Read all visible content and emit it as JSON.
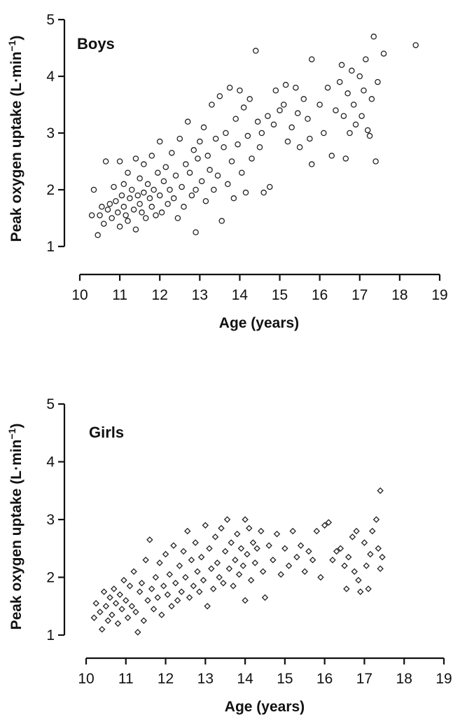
{
  "chart_data": [
    {
      "type": "scatter",
      "panel_label": "Boys",
      "xlabel": "Age (years)",
      "ylabel": "Peak oxygen uptake (L·min",
      "ylabel_sup": "−1",
      "ylabel_close": ")",
      "xlim": [
        10,
        19
      ],
      "ylim": [
        1,
        5
      ],
      "xticks": [
        10,
        11,
        12,
        13,
        14,
        15,
        16,
        17,
        18,
        19
      ],
      "yticks": [
        1,
        2,
        3,
        4,
        5
      ],
      "grid": false,
      "legend": "none",
      "marker": "circle",
      "points": [
        [
          10.3,
          1.55
        ],
        [
          10.35,
          2.0
        ],
        [
          10.45,
          1.2
        ],
        [
          10.5,
          1.55
        ],
        [
          10.55,
          1.7
        ],
        [
          10.6,
          1.4
        ],
        [
          10.65,
          2.5
        ],
        [
          10.7,
          1.65
        ],
        [
          10.75,
          1.75
        ],
        [
          10.8,
          1.5
        ],
        [
          10.85,
          2.05
        ],
        [
          10.9,
          1.8
        ],
        [
          10.95,
          1.6
        ],
        [
          11.0,
          2.5
        ],
        [
          11.0,
          1.35
        ],
        [
          11.05,
          1.9
        ],
        [
          11.1,
          2.1
        ],
        [
          11.1,
          1.7
        ],
        [
          11.15,
          1.55
        ],
        [
          11.2,
          2.3
        ],
        [
          11.2,
          1.45
        ],
        [
          11.25,
          1.85
        ],
        [
          11.3,
          2.0
        ],
        [
          11.35,
          1.65
        ],
        [
          11.4,
          2.55
        ],
        [
          11.4,
          1.3
        ],
        [
          11.45,
          1.9
        ],
        [
          11.5,
          2.2
        ],
        [
          11.5,
          1.75
        ],
        [
          11.55,
          1.6
        ],
        [
          11.6,
          2.45
        ],
        [
          11.6,
          1.95
        ],
        [
          11.65,
          1.5
        ],
        [
          11.7,
          2.1
        ],
        [
          11.75,
          1.85
        ],
        [
          11.8,
          2.6
        ],
        [
          11.8,
          1.7
        ],
        [
          11.85,
          2.0
        ],
        [
          11.9,
          1.55
        ],
        [
          11.95,
          2.3
        ],
        [
          12.0,
          2.85
        ],
        [
          12.0,
          1.9
        ],
        [
          12.05,
          1.6
        ],
        [
          12.1,
          2.15
        ],
        [
          12.15,
          2.4
        ],
        [
          12.2,
          1.75
        ],
        [
          12.25,
          2.0
        ],
        [
          12.3,
          2.65
        ],
        [
          12.35,
          1.85
        ],
        [
          12.4,
          2.25
        ],
        [
          12.45,
          1.5
        ],
        [
          12.5,
          2.9
        ],
        [
          12.55,
          2.05
        ],
        [
          12.6,
          1.7
        ],
        [
          12.65,
          2.45
        ],
        [
          12.7,
          3.2
        ],
        [
          12.75,
          2.3
        ],
        [
          12.8,
          1.9
        ],
        [
          12.85,
          2.7
        ],
        [
          12.9,
          2.0
        ],
        [
          12.9,
          1.25
        ],
        [
          12.95,
          2.55
        ],
        [
          13.0,
          2.85
        ],
        [
          13.05,
          2.15
        ],
        [
          13.1,
          3.1
        ],
        [
          13.15,
          1.8
        ],
        [
          13.2,
          2.6
        ],
        [
          13.25,
          2.35
        ],
        [
          13.3,
          3.5
        ],
        [
          13.35,
          2.0
        ],
        [
          13.4,
          2.9
        ],
        [
          13.45,
          2.25
        ],
        [
          13.5,
          3.65
        ],
        [
          13.55,
          1.45
        ],
        [
          13.6,
          2.75
        ],
        [
          13.65,
          3.0
        ],
        [
          13.7,
          2.1
        ],
        [
          13.75,
          3.8
        ],
        [
          13.8,
          2.5
        ],
        [
          13.85,
          1.85
        ],
        [
          13.9,
          3.25
        ],
        [
          13.95,
          2.8
        ],
        [
          14.0,
          3.75
        ],
        [
          14.05,
          2.3
        ],
        [
          14.1,
          3.45
        ],
        [
          14.15,
          1.95
        ],
        [
          14.2,
          2.95
        ],
        [
          14.25,
          3.6
        ],
        [
          14.3,
          2.55
        ],
        [
          14.4,
          4.45
        ],
        [
          14.45,
          3.2
        ],
        [
          14.5,
          2.75
        ],
        [
          14.55,
          3.0
        ],
        [
          14.6,
          1.95
        ],
        [
          14.7,
          3.3
        ],
        [
          14.75,
          2.05
        ],
        [
          14.85,
          3.15
        ],
        [
          14.9,
          3.75
        ],
        [
          15.0,
          3.4
        ],
        [
          15.1,
          3.5
        ],
        [
          15.15,
          3.85
        ],
        [
          15.2,
          2.85
        ],
        [
          15.3,
          3.1
        ],
        [
          15.4,
          3.8
        ],
        [
          15.45,
          3.35
        ],
        [
          15.5,
          2.75
        ],
        [
          15.6,
          3.6
        ],
        [
          15.7,
          3.25
        ],
        [
          15.75,
          2.9
        ],
        [
          15.8,
          2.45
        ],
        [
          15.8,
          4.3
        ],
        [
          16.0,
          3.5
        ],
        [
          16.1,
          3.0
        ],
        [
          16.2,
          3.8
        ],
        [
          16.3,
          2.6
        ],
        [
          16.4,
          3.4
        ],
        [
          16.5,
          3.9
        ],
        [
          16.55,
          4.2
        ],
        [
          16.6,
          3.3
        ],
        [
          16.65,
          2.55
        ],
        [
          16.7,
          3.7
        ],
        [
          16.75,
          3.0
        ],
        [
          16.8,
          4.1
        ],
        [
          16.85,
          3.5
        ],
        [
          16.9,
          3.15
        ],
        [
          17.0,
          4.0
        ],
        [
          17.05,
          3.3
        ],
        [
          17.1,
          3.75
        ],
        [
          17.15,
          4.3
        ],
        [
          17.2,
          3.05
        ],
        [
          17.25,
          2.95
        ],
        [
          17.3,
          3.6
        ],
        [
          17.35,
          4.7
        ],
        [
          17.4,
          2.5
        ],
        [
          17.45,
          3.9
        ],
        [
          17.6,
          4.4
        ],
        [
          18.4,
          4.55
        ]
      ]
    },
    {
      "type": "scatter",
      "panel_label": "Girls",
      "xlabel": "Age (years)",
      "ylabel": "Peak oxygen uptake (L·min",
      "ylabel_sup": "−1",
      "ylabel_close": ")",
      "xlim": [
        10,
        19
      ],
      "ylim": [
        1,
        5
      ],
      "xticks": [
        10,
        11,
        12,
        13,
        14,
        15,
        16,
        17,
        18,
        19
      ],
      "yticks": [
        1,
        2,
        3,
        4,
        5
      ],
      "grid": false,
      "legend": "none",
      "marker": "diamond",
      "points": [
        [
          10.2,
          1.3
        ],
        [
          10.25,
          1.55
        ],
        [
          10.35,
          1.4
        ],
        [
          10.4,
          1.1
        ],
        [
          10.45,
          1.75
        ],
        [
          10.5,
          1.5
        ],
        [
          10.55,
          1.25
        ],
        [
          10.6,
          1.65
        ],
        [
          10.65,
          1.35
        ],
        [
          10.7,
          1.8
        ],
        [
          10.75,
          1.55
        ],
        [
          10.8,
          1.2
        ],
        [
          10.85,
          1.7
        ],
        [
          10.9,
          1.45
        ],
        [
          10.95,
          1.95
        ],
        [
          11.0,
          1.6
        ],
        [
          11.05,
          1.3
        ],
        [
          11.1,
          1.85
        ],
        [
          11.15,
          1.5
        ],
        [
          11.2,
          2.1
        ],
        [
          11.25,
          1.4
        ],
        [
          11.3,
          1.05
        ],
        [
          11.35,
          1.75
        ],
        [
          11.4,
          1.9
        ],
        [
          11.45,
          1.25
        ],
        [
          11.5,
          2.3
        ],
        [
          11.55,
          1.6
        ],
        [
          11.6,
          2.65
        ],
        [
          11.65,
          1.8
        ],
        [
          11.7,
          1.45
        ],
        [
          11.75,
          2.0
        ],
        [
          11.8,
          1.65
        ],
        [
          11.85,
          2.25
        ],
        [
          11.9,
          1.35
        ],
        [
          11.95,
          1.85
        ],
        [
          12.0,
          2.4
        ],
        [
          12.05,
          1.7
        ],
        [
          12.1,
          2.05
        ],
        [
          12.15,
          1.5
        ],
        [
          12.2,
          2.55
        ],
        [
          12.25,
          1.9
        ],
        [
          12.3,
          1.6
        ],
        [
          12.35,
          2.2
        ],
        [
          12.4,
          1.75
        ],
        [
          12.45,
          2.45
        ],
        [
          12.5,
          2.0
        ],
        [
          12.55,
          2.8
        ],
        [
          12.6,
          1.65
        ],
        [
          12.65,
          2.3
        ],
        [
          12.7,
          1.85
        ],
        [
          12.75,
          2.6
        ],
        [
          12.8,
          2.1
        ],
        [
          12.85,
          1.75
        ],
        [
          12.9,
          2.35
        ],
        [
          12.95,
          1.95
        ],
        [
          13.0,
          2.9
        ],
        [
          13.05,
          1.5
        ],
        [
          13.1,
          2.5
        ],
        [
          13.15,
          2.15
        ],
        [
          13.2,
          1.8
        ],
        [
          13.25,
          2.7
        ],
        [
          13.3,
          2.25
        ],
        [
          13.35,
          2.0
        ],
        [
          13.4,
          2.85
        ],
        [
          13.45,
          1.9
        ],
        [
          13.5,
          2.45
        ],
        [
          13.55,
          3.0
        ],
        [
          13.6,
          2.15
        ],
        [
          13.65,
          2.6
        ],
        [
          13.7,
          1.85
        ],
        [
          13.75,
          2.3
        ],
        [
          13.8,
          2.75
        ],
        [
          13.85,
          2.05
        ],
        [
          13.9,
          2.5
        ],
        [
          13.95,
          2.2
        ],
        [
          14.0,
          3.0
        ],
        [
          14.0,
          1.6
        ],
        [
          14.05,
          2.4
        ],
        [
          14.1,
          2.85
        ],
        [
          14.15,
          1.95
        ],
        [
          14.2,
          2.6
        ],
        [
          14.25,
          2.25
        ],
        [
          14.3,
          2.5
        ],
        [
          14.4,
          2.8
        ],
        [
          14.45,
          2.1
        ],
        [
          14.5,
          1.65
        ],
        [
          14.6,
          2.55
        ],
        [
          14.7,
          2.3
        ],
        [
          14.8,
          2.75
        ],
        [
          14.9,
          2.05
        ],
        [
          15.0,
          2.5
        ],
        [
          15.1,
          2.2
        ],
        [
          15.2,
          2.8
        ],
        [
          15.3,
          2.35
        ],
        [
          15.4,
          2.55
        ],
        [
          15.5,
          2.1
        ],
        [
          15.6,
          2.45
        ],
        [
          15.7,
          2.3
        ],
        [
          15.8,
          2.8
        ],
        [
          15.9,
          2.0
        ],
        [
          16.0,
          2.9
        ],
        [
          16.1,
          2.95
        ],
        [
          16.2,
          2.3
        ],
        [
          16.3,
          2.45
        ],
        [
          16.4,
          2.5
        ],
        [
          16.5,
          2.2
        ],
        [
          16.55,
          1.8
        ],
        [
          16.6,
          2.35
        ],
        [
          16.7,
          2.7
        ],
        [
          16.75,
          2.1
        ],
        [
          16.8,
          2.8
        ],
        [
          16.85,
          1.95
        ],
        [
          16.9,
          1.75
        ],
        [
          17.0,
          2.6
        ],
        [
          17.05,
          2.2
        ],
        [
          17.1,
          1.8
        ],
        [
          17.15,
          2.4
        ],
        [
          17.2,
          2.8
        ],
        [
          17.3,
          3.0
        ],
        [
          17.35,
          2.5
        ],
        [
          17.4,
          2.15
        ],
        [
          17.45,
          2.35
        ],
        [
          17.4,
          3.5
        ]
      ]
    }
  ]
}
